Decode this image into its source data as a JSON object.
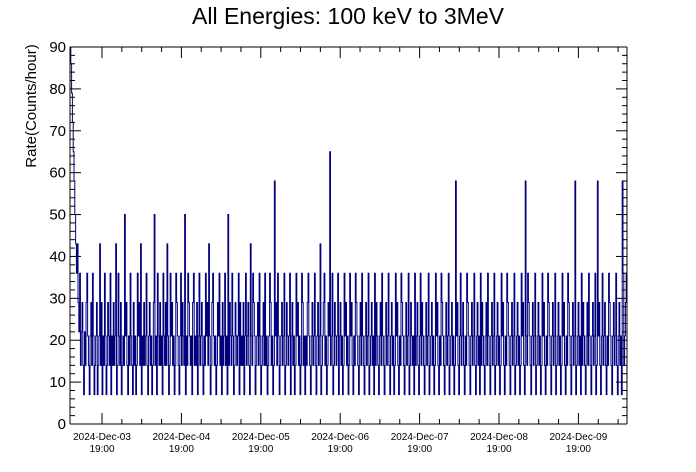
{
  "chart_data": {
    "type": "line",
    "title": "All Energies:  100 keV to 3MeV",
    "xlabel": "",
    "ylabel": "Rate(Counts/hour)",
    "ylim": [
      0,
      90
    ],
    "y_ticks": [
      0,
      10,
      20,
      30,
      40,
      50,
      60,
      70,
      80,
      90
    ],
    "x_ticks": [
      {
        "date": "2024-Dec-03",
        "time": "19:00"
      },
      {
        "date": "2024-Dec-04",
        "time": "19:00"
      },
      {
        "date": "2024-Dec-05",
        "time": "19:00"
      },
      {
        "date": "2024-Dec-06",
        "time": "19:00"
      },
      {
        "date": "2024-Dec-07",
        "time": "19:00"
      },
      {
        "date": "2024-Dec-08",
        "time": "19:00"
      },
      {
        "date": "2024-Dec-09",
        "time": "19:00"
      }
    ],
    "series": [
      {
        "color": "#00007f",
        "values": [
          90,
          86,
          79,
          72,
          65,
          58,
          50,
          43,
          36,
          43,
          29,
          22,
          36,
          14,
          22,
          29,
          14,
          7,
          22,
          14,
          29,
          36,
          21,
          14,
          7,
          21,
          29,
          14,
          36,
          21,
          7,
          14,
          21,
          29,
          7,
          14,
          21,
          43,
          14,
          29,
          7,
          21,
          14,
          36,
          21,
          7,
          14,
          29,
          21,
          14,
          36,
          7,
          21,
          14,
          29,
          14,
          21,
          43,
          7,
          14,
          36,
          21,
          14,
          29,
          7,
          14,
          21,
          14,
          50,
          21,
          29,
          14,
          7,
          21,
          14,
          36,
          21,
          14,
          7,
          29,
          14,
          21,
          7,
          14,
          36,
          21,
          29,
          14,
          43,
          7,
          21,
          14,
          29,
          14,
          21,
          36,
          14,
          7,
          21,
          29,
          14,
          21,
          7,
          14,
          29,
          50,
          14,
          21,
          7,
          36,
          21,
          14,
          29,
          14,
          21,
          7,
          36,
          21,
          14,
          29,
          14,
          43,
          21,
          7,
          14,
          36,
          21,
          29,
          14,
          21,
          7,
          14,
          36,
          29,
          21,
          14,
          7,
          21,
          36,
          14,
          29,
          21,
          14,
          50,
          7,
          21,
          14,
          36,
          29,
          21,
          14,
          21,
          7,
          29,
          36,
          14,
          21,
          14,
          29,
          7,
          21,
          36,
          14,
          21,
          29,
          14,
          7,
          21,
          14,
          36,
          21,
          29,
          14,
          43,
          21,
          7,
          14,
          29,
          36,
          21,
          14,
          21,
          7,
          14,
          29,
          21,
          36,
          14,
          21,
          7,
          29,
          14,
          21,
          36,
          14,
          21,
          7,
          50,
          14,
          29,
          21,
          14,
          36,
          21,
          7,
          14,
          29,
          21,
          14,
          21,
          36,
          7,
          29,
          14,
          21,
          14,
          29,
          7,
          21,
          36,
          14,
          21,
          29,
          14,
          7,
          43,
          21,
          14,
          36,
          29,
          21,
          7,
          14,
          21,
          29,
          14,
          36,
          21,
          7,
          14,
          21,
          29,
          14,
          36,
          14,
          21,
          7,
          14,
          21,
          36,
          29,
          14,
          21,
          7,
          14,
          58,
          21,
          29,
          14,
          36,
          21,
          7,
          14,
          21,
          29,
          14,
          21,
          36,
          7,
          14,
          29,
          21,
          14,
          21,
          36,
          7,
          21,
          29,
          14,
          21,
          7,
          14,
          36,
          21,
          29,
          14,
          21,
          7,
          14,
          36,
          29,
          14,
          21,
          7,
          21,
          14,
          29,
          36,
          21,
          14,
          7,
          21,
          29,
          14,
          21,
          36,
          14,
          7,
          21,
          29,
          14,
          21,
          43,
          7,
          14,
          21,
          29,
          36,
          14,
          21,
          7,
          14,
          29,
          21,
          65,
          14,
          21,
          36,
          7,
          14,
          29,
          21,
          14,
          21,
          36,
          7,
          21,
          29,
          14,
          21,
          7,
          14,
          36,
          21,
          29,
          14,
          21,
          7,
          14,
          36,
          21,
          29,
          14,
          7,
          21,
          14,
          36,
          29,
          21,
          14,
          7,
          21,
          29,
          14,
          36,
          21,
          14,
          7,
          21,
          29,
          14,
          21,
          36,
          7,
          14,
          21,
          29,
          14,
          21,
          7,
          36,
          14,
          29,
          21,
          14,
          7,
          21,
          29,
          14,
          36,
          21,
          14,
          7,
          21,
          29,
          14,
          21,
          36,
          14,
          7,
          21,
          29,
          14,
          21,
          7,
          14,
          36,
          21,
          29,
          14,
          7,
          21,
          14,
          36,
          29,
          21,
          14,
          7,
          21,
          29,
          14,
          21,
          36,
          7,
          14,
          29,
          21,
          14,
          21,
          7,
          36,
          14,
          21,
          29,
          14,
          7,
          21,
          36,
          14,
          29,
          21,
          14,
          7,
          21,
          29,
          14,
          21,
          36,
          7,
          14,
          21,
          29,
          14,
          21,
          7,
          14,
          36,
          21,
          29,
          14,
          7,
          21,
          14,
          36,
          29,
          21,
          14,
          7,
          21,
          29,
          14,
          21,
          36,
          7,
          14,
          21,
          29,
          14,
          21,
          7,
          14,
          58,
          21,
          29,
          14,
          7,
          21,
          36,
          14,
          21,
          29,
          14,
          7,
          21,
          14,
          36,
          29,
          21,
          14,
          7,
          21,
          29,
          14,
          21,
          36,
          14,
          7,
          21,
          29,
          14,
          21,
          7,
          36,
          14,
          29,
          21,
          14,
          7,
          21,
          29,
          14,
          36,
          21,
          14,
          7,
          21,
          29,
          14,
          21,
          36,
          7,
          14,
          21,
          29,
          14,
          21,
          7,
          14,
          36,
          21,
          29,
          14,
          7,
          21,
          14,
          36,
          29,
          21,
          14,
          7,
          21,
          29,
          14,
          21,
          36,
          7,
          14,
          21,
          29,
          14,
          21,
          7,
          14,
          36,
          21,
          29,
          14,
          7,
          58,
          21,
          14,
          36,
          29,
          21,
          14,
          7,
          21,
          29,
          14,
          21,
          36,
          7,
          14,
          21,
          29,
          14,
          21,
          7,
          14,
          36,
          21,
          29,
          14,
          7,
          21,
          14,
          36,
          29,
          21,
          14,
          7,
          21,
          29,
          14,
          21,
          36,
          7,
          14,
          21,
          29,
          14,
          21,
          7,
          14,
          36,
          21,
          29,
          14,
          7,
          21,
          14,
          36,
          29,
          21,
          14,
          7,
          21,
          29,
          14,
          21,
          58,
          7,
          14,
          21,
          29,
          14,
          21,
          7,
          36,
          14,
          29,
          21,
          14,
          7,
          21,
          29,
          14,
          36,
          21,
          14,
          7,
          21,
          29,
          14,
          21,
          36,
          7,
          14,
          58,
          21,
          29,
          14,
          7,
          21,
          36,
          14,
          21,
          29,
          14,
          7,
          21,
          14,
          36,
          29,
          21,
          14,
          7,
          21,
          29,
          14,
          21,
          36,
          14,
          7,
          21,
          29,
          14,
          21,
          7,
          58,
          36,
          14,
          21,
          29,
          36
        ]
      }
    ],
    "grid": false,
    "legend": "none"
  }
}
